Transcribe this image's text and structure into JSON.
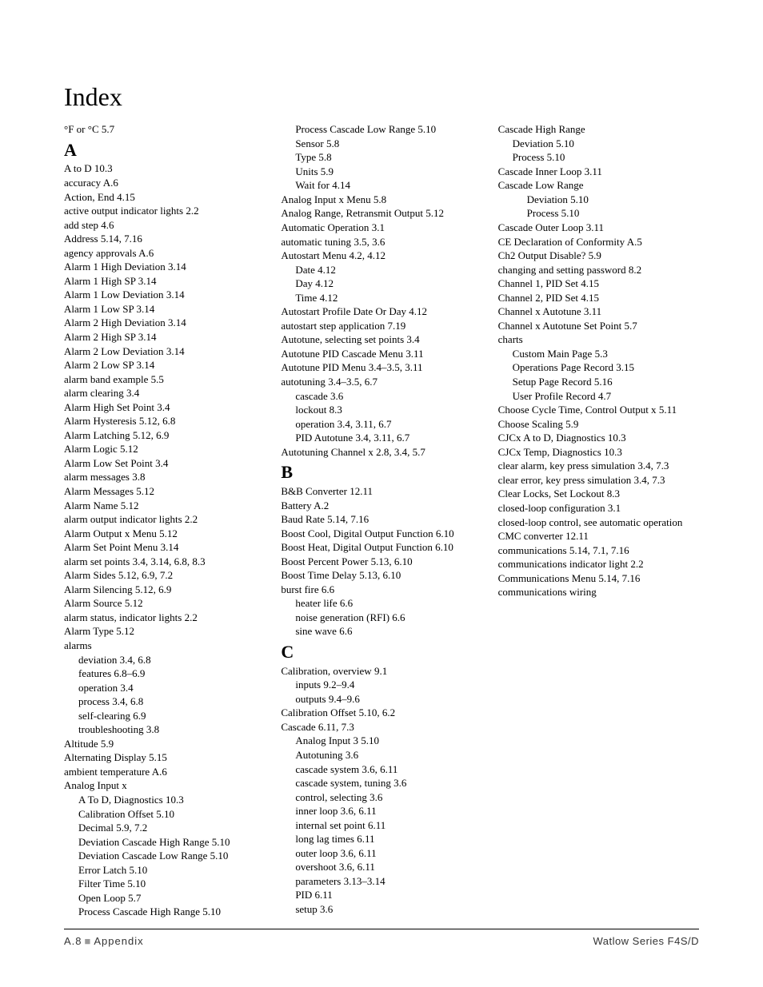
{
  "title": "Index",
  "footer": {
    "page": "A.8",
    "section": "Appendix",
    "product": "Watlow Series F4S/D"
  },
  "columns": [
    [
      {
        "type": "entry",
        "indent": 0,
        "term": "°F or °C",
        "pages": "5.7"
      },
      {
        "type": "letter",
        "text": "A"
      },
      {
        "type": "entry",
        "indent": 0,
        "term": "A to D",
        "pages": "10.3"
      },
      {
        "type": "entry",
        "indent": 0,
        "term": "accuracy",
        "pages": "A.6"
      },
      {
        "type": "entry",
        "indent": 0,
        "term": "Action, End",
        "pages": "4.15"
      },
      {
        "type": "entry",
        "indent": 0,
        "term": "active output indicator lights",
        "pages": "2.2"
      },
      {
        "type": "entry",
        "indent": 0,
        "term": "add step",
        "pages": "4.6"
      },
      {
        "type": "entry",
        "indent": 0,
        "term": "Address",
        "pages": "5.14, 7.16"
      },
      {
        "type": "entry",
        "indent": 0,
        "term": "agency approvals",
        "pages": "A.6"
      },
      {
        "type": "entry",
        "indent": 0,
        "term": "Alarm 1 High Deviation",
        "pages": "3.14"
      },
      {
        "type": "entry",
        "indent": 0,
        "term": "Alarm 1 High SP",
        "pages": "3.14"
      },
      {
        "type": "entry",
        "indent": 0,
        "term": "Alarm 1 Low Deviation",
        "pages": "3.14"
      },
      {
        "type": "entry",
        "indent": 0,
        "term": "Alarm 1 Low SP",
        "pages": "3.14"
      },
      {
        "type": "entry",
        "indent": 0,
        "term": "Alarm 2 High Deviation",
        "pages": "3.14"
      },
      {
        "type": "entry",
        "indent": 0,
        "term": "Alarm 2 High SP",
        "pages": "3.14"
      },
      {
        "type": "entry",
        "indent": 0,
        "term": "Alarm 2 Low Deviation",
        "pages": "3.14"
      },
      {
        "type": "entry",
        "indent": 0,
        "term": "Alarm 2 Low SP",
        "pages": "3.14"
      },
      {
        "type": "entry",
        "indent": 0,
        "term": "alarm band example",
        "pages": "5.5"
      },
      {
        "type": "entry",
        "indent": 0,
        "term": "alarm clearing",
        "pages": "3.4"
      },
      {
        "type": "entry",
        "indent": 0,
        "term": "Alarm High Set Point",
        "pages": "3.4"
      },
      {
        "type": "entry",
        "indent": 0,
        "term": "Alarm Hysteresis",
        "pages": "5.12, 6.8"
      },
      {
        "type": "entry",
        "indent": 0,
        "term": "Alarm Latching",
        "pages": "5.12, 6.9"
      },
      {
        "type": "entry",
        "indent": 0,
        "term": "Alarm Logic",
        "pages": "5.12"
      },
      {
        "type": "entry",
        "indent": 0,
        "term": "Alarm Low Set Point",
        "pages": "3.4"
      },
      {
        "type": "entry",
        "indent": 0,
        "term": "alarm messages",
        "pages": "3.8"
      },
      {
        "type": "entry",
        "indent": 0,
        "term": "Alarm Messages",
        "pages": "5.12"
      },
      {
        "type": "entry",
        "indent": 0,
        "term": "Alarm Name",
        "pages": "5.12"
      },
      {
        "type": "entry",
        "indent": 0,
        "term": "alarm output indicator lights",
        "pages": "2.2"
      },
      {
        "type": "entry",
        "indent": 0,
        "term": "Alarm Output x Menu",
        "pages": "5.12"
      },
      {
        "type": "entry",
        "indent": 0,
        "term": "Alarm Set Point Menu",
        "pages": "3.14"
      },
      {
        "type": "entry",
        "indent": 0,
        "term": "alarm set points",
        "pages": "3.4, 3.14, 6.8, 8.3"
      },
      {
        "type": "entry",
        "indent": 0,
        "term": "Alarm Sides",
        "pages": "5.12, 6.9, 7.2"
      },
      {
        "type": "entry",
        "indent": 0,
        "term": "Alarm Silencing",
        "pages": "5.12, 6.9"
      },
      {
        "type": "entry",
        "indent": 0,
        "term": "Alarm Source",
        "pages": "5.12"
      },
      {
        "type": "entry",
        "indent": 0,
        "term": "alarm status, indicator lights",
        "pages": "2.2"
      },
      {
        "type": "entry",
        "indent": 0,
        "term": "Alarm Type",
        "pages": "5.12"
      },
      {
        "type": "entry",
        "indent": 0,
        "term": "alarms",
        "pages": ""
      },
      {
        "type": "entry",
        "indent": 1,
        "term": "deviation",
        "pages": "3.4, 6.8"
      },
      {
        "type": "entry",
        "indent": 1,
        "term": "features",
        "pages": "6.8–6.9"
      },
      {
        "type": "entry",
        "indent": 1,
        "term": "operation",
        "pages": "3.4"
      },
      {
        "type": "entry",
        "indent": 1,
        "term": "process",
        "pages": "3.4, 6.8"
      },
      {
        "type": "entry",
        "indent": 1,
        "term": "self-clearing",
        "pages": "6.9"
      },
      {
        "type": "entry",
        "indent": 1,
        "term": "troubleshooting",
        "pages": "3.8"
      },
      {
        "type": "entry",
        "indent": 0,
        "term": "Altitude",
        "pages": "5.9"
      },
      {
        "type": "entry",
        "indent": 0,
        "term": "Alternating Display",
        "pages": "5.15"
      },
      {
        "type": "entry",
        "indent": 0,
        "term": "ambient temperature",
        "pages": "A.6"
      },
      {
        "type": "entry",
        "indent": 0,
        "term": "Analog Input x",
        "pages": ""
      },
      {
        "type": "entry",
        "indent": 1,
        "term": "A To D, Diagnostics",
        "pages": "10.3"
      },
      {
        "type": "entry",
        "indent": 1,
        "term": "Calibration Offset",
        "pages": "5.10"
      }
    ],
    [
      {
        "type": "entry",
        "indent": 1,
        "term": "Decimal",
        "pages": "5.9, 7.2"
      },
      {
        "type": "entry",
        "indent": 1,
        "term": "Deviation Cascade High Range",
        "pages": "5.10"
      },
      {
        "type": "entry",
        "indent": 1,
        "term": "Deviation Cascade Low Range",
        "pages": "5.10"
      },
      {
        "type": "entry",
        "indent": 1,
        "term": "Error Latch",
        "pages": "5.10"
      },
      {
        "type": "entry",
        "indent": 1,
        "term": "Filter Time",
        "pages": "5.10"
      },
      {
        "type": "entry",
        "indent": 1,
        "term": "Open Loop",
        "pages": "5.7"
      },
      {
        "type": "entry",
        "indent": 1,
        "term": "Process Cascade High Range",
        "pages": "5.10"
      },
      {
        "type": "entry",
        "indent": 1,
        "term": "Process Cascade Low Range",
        "pages": "5.10"
      },
      {
        "type": "entry",
        "indent": 1,
        "term": "Sensor",
        "pages": "5.8"
      },
      {
        "type": "entry",
        "indent": 1,
        "term": "Type",
        "pages": "5.8"
      },
      {
        "type": "entry",
        "indent": 1,
        "term": "Units",
        "pages": "5.9"
      },
      {
        "type": "entry",
        "indent": 1,
        "term": "Wait for",
        "pages": "4.14"
      },
      {
        "type": "entry",
        "indent": 0,
        "term": "Analog Input x Menu",
        "pages": "5.8"
      },
      {
        "type": "entry",
        "indent": 0,
        "term": "Analog Range, Retransmit Output",
        "pages": "5.12"
      },
      {
        "type": "entry",
        "indent": 0,
        "term": "Automatic Operation",
        "pages": "3.1"
      },
      {
        "type": "entry",
        "indent": 0,
        "term": "automatic tuning",
        "pages": "3.5, 3.6"
      },
      {
        "type": "entry",
        "indent": 0,
        "term": "Autostart Menu",
        "pages": "4.2, 4.12"
      },
      {
        "type": "entry",
        "indent": 1,
        "term": "Date",
        "pages": "4.12"
      },
      {
        "type": "entry",
        "indent": 1,
        "term": "Day",
        "pages": "4.12"
      },
      {
        "type": "entry",
        "indent": 1,
        "term": "Time",
        "pages": "4.12"
      },
      {
        "type": "entry",
        "indent": 0,
        "term": "Autostart Profile Date Or Day",
        "pages": "4.12"
      },
      {
        "type": "entry",
        "indent": 0,
        "term": "autostart step application",
        "pages": "7.19"
      },
      {
        "type": "entry",
        "indent": 0,
        "term": "Autotune, selecting set points",
        "pages": "3.4"
      },
      {
        "type": "entry",
        "indent": 0,
        "term": "Autotune PID Cascade Menu",
        "pages": "3.11"
      },
      {
        "type": "entry",
        "indent": 0,
        "term": "Autotune PID Menu",
        "pages": "3.4–3.5, 3.11"
      },
      {
        "type": "entry",
        "indent": 0,
        "term": "autotuning",
        "pages": "3.4–3.5, 6.7"
      },
      {
        "type": "entry",
        "indent": 1,
        "term": "cascade",
        "pages": "3.6"
      },
      {
        "type": "entry",
        "indent": 1,
        "term": "lockout",
        "pages": "8.3"
      },
      {
        "type": "entry",
        "indent": 1,
        "term": "operation",
        "pages": "3.4, 3.11, 6.7"
      },
      {
        "type": "entry",
        "indent": 1,
        "term": "PID Autotune",
        "pages": "3.4, 3.11, 6.7"
      },
      {
        "type": "entry",
        "indent": 0,
        "term": "Autotuning Channel x",
        "pages": "2.8, 3.4, 5.7"
      },
      {
        "type": "letter",
        "text": "B"
      },
      {
        "type": "entry",
        "indent": 0,
        "term": "B&B Converter",
        "pages": "12.11"
      },
      {
        "type": "entry",
        "indent": 0,
        "term": "Battery",
        "pages": "A.2"
      },
      {
        "type": "entry",
        "indent": 0,
        "term": "Baud Rate",
        "pages": "5.14, 7.16"
      },
      {
        "type": "entry",
        "indent": 0,
        "term": "Boost Cool, Digital Output Function",
        "pages": "6.10"
      },
      {
        "type": "entry",
        "indent": 0,
        "term": "Boost Heat, Digital Output Function",
        "pages": "6.10"
      },
      {
        "type": "entry",
        "indent": 0,
        "term": "Boost Percent Power",
        "pages": "5.13, 6.10"
      },
      {
        "type": "entry",
        "indent": 0,
        "term": "Boost Time Delay",
        "pages": "5.13, 6.10"
      },
      {
        "type": "entry",
        "indent": 0,
        "term": "burst fire",
        "pages": "6.6"
      },
      {
        "type": "entry",
        "indent": 1,
        "term": "heater life",
        "pages": "6.6"
      },
      {
        "type": "entry",
        "indent": 1,
        "term": "noise generation (RFI)",
        "pages": "6.6"
      },
      {
        "type": "entry",
        "indent": 1,
        "term": "sine wave",
        "pages": "6.6"
      },
      {
        "type": "letter",
        "text": "C"
      },
      {
        "type": "entry",
        "indent": 0,
        "term": "Calibration, overview",
        "pages": "9.1"
      },
      {
        "type": "entry",
        "indent": 1,
        "term": "inputs",
        "pages": "9.2–9.4"
      },
      {
        "type": "entry",
        "indent": 1,
        "term": "outputs",
        "pages": "9.4–9.6"
      }
    ],
    [
      {
        "type": "entry",
        "indent": 0,
        "term": "Calibration Offset",
        "pages": "5.10, 6.2"
      },
      {
        "type": "entry",
        "indent": 0,
        "term": "Cascade",
        "pages": "6.11, 7.3"
      },
      {
        "type": "entry",
        "indent": 1,
        "term": "Analog Input 3",
        "pages": "5.10"
      },
      {
        "type": "entry",
        "indent": 1,
        "term": "Autotuning",
        "pages": "3.6"
      },
      {
        "type": "entry",
        "indent": 1,
        "term": "cascade system",
        "pages": "3.6, 6.11"
      },
      {
        "type": "entry",
        "indent": 1,
        "term": "cascade system, tuning",
        "pages": "3.6"
      },
      {
        "type": "entry",
        "indent": 1,
        "term": "control, selecting",
        "pages": "3.6"
      },
      {
        "type": "entry",
        "indent": 1,
        "term": "inner loop",
        "pages": "3.6, 6.11"
      },
      {
        "type": "entry",
        "indent": 1,
        "term": "internal set point",
        "pages": "6.11"
      },
      {
        "type": "entry",
        "indent": 1,
        "term": "long lag times",
        "pages": "6.11"
      },
      {
        "type": "entry",
        "indent": 1,
        "term": "outer loop",
        "pages": "3.6, 6.11"
      },
      {
        "type": "entry",
        "indent": 1,
        "term": "overshoot",
        "pages": "3.6, 6.11"
      },
      {
        "type": "entry",
        "indent": 1,
        "term": "parameters",
        "pages": "3.13–3.14"
      },
      {
        "type": "entry",
        "indent": 1,
        "term": "PID",
        "pages": "6.11"
      },
      {
        "type": "entry",
        "indent": 1,
        "term": "setup",
        "pages": "3.6"
      },
      {
        "type": "entry",
        "indent": 0,
        "term": "Cascade High Range",
        "pages": ""
      },
      {
        "type": "entry",
        "indent": 1,
        "term": "Deviation",
        "pages": "5.10"
      },
      {
        "type": "entry",
        "indent": 1,
        "term": "Process",
        "pages": "5.10"
      },
      {
        "type": "entry",
        "indent": 0,
        "term": "Cascade Inner Loop",
        "pages": "3.11"
      },
      {
        "type": "entry",
        "indent": 0,
        "term": "Cascade Low Range",
        "pages": ""
      },
      {
        "type": "entry",
        "indent": 2,
        "term": "Deviation",
        "pages": "5.10"
      },
      {
        "type": "entry",
        "indent": 2,
        "term": "Process",
        "pages": "5.10"
      },
      {
        "type": "entry",
        "indent": 0,
        "term": "Cascade Outer Loop",
        "pages": "3.11"
      },
      {
        "type": "entry",
        "indent": 0,
        "term": "CE Declaration of Conformity",
        "pages": "A.5"
      },
      {
        "type": "entry",
        "indent": 0,
        "term": "Ch2 Output Disable?",
        "pages": "5.9"
      },
      {
        "type": "entry",
        "indent": 0,
        "term": "changing and setting password",
        "pages": "8.2"
      },
      {
        "type": "entry",
        "indent": 0,
        "term": "Channel 1, PID Set",
        "pages": "4.15"
      },
      {
        "type": "entry",
        "indent": 0,
        "term": "Channel 2, PID Set",
        "pages": "4.15"
      },
      {
        "type": "entry",
        "indent": 0,
        "term": "Channel x Autotune",
        "pages": "3.11"
      },
      {
        "type": "entry",
        "indent": 0,
        "term": "Channel x Autotune Set Point",
        "pages": "5.7"
      },
      {
        "type": "entry",
        "indent": 0,
        "term": "charts",
        "pages": ""
      },
      {
        "type": "entry",
        "indent": 1,
        "term": "Custom Main Page",
        "pages": "5.3"
      },
      {
        "type": "entry",
        "indent": 1,
        "term": "Operations Page Record",
        "pages": "3.15"
      },
      {
        "type": "entry",
        "indent": 1,
        "term": "Setup Page Record",
        "pages": "5.16"
      },
      {
        "type": "entry",
        "indent": 1,
        "term": "User Profile Record",
        "pages": "4.7"
      },
      {
        "type": "entry",
        "indent": 0,
        "term": "Choose Cycle Time, Control Output x",
        "pages": "5.11"
      },
      {
        "type": "entry",
        "indent": 0,
        "term": "Choose Scaling",
        "pages": "5.9"
      },
      {
        "type": "entry",
        "indent": 0,
        "term": "CJCx A to D, Diagnostics",
        "pages": "10.3"
      },
      {
        "type": "entry",
        "indent": 0,
        "term": "CJCx Temp, Diagnostics",
        "pages": "10.3"
      },
      {
        "type": "entry",
        "indent": 0,
        "term": "clear alarm, key press simulation",
        "pages": "3.4, 7.3"
      },
      {
        "type": "entry",
        "indent": 0,
        "term": "clear error, key press simulation",
        "pages": "3.4, 7.3"
      },
      {
        "type": "entry",
        "indent": 0,
        "term": "Clear Locks, Set Lockout",
        "pages": "8.3"
      },
      {
        "type": "entry",
        "indent": 0,
        "term": "closed-loop configuration",
        "pages": "3.1"
      },
      {
        "type": "entry",
        "indent": 0,
        "term": "closed-loop control,  see automatic operation",
        "pages": ""
      },
      {
        "type": "entry",
        "indent": 0,
        "term": "CMC converter",
        "pages": "12.11"
      },
      {
        "type": "entry",
        "indent": 0,
        "term": "communications",
        "pages": "5.14, 7.1, 7.16"
      },
      {
        "type": "entry",
        "indent": 0,
        "term": "communications indicator light",
        "pages": "2.2"
      },
      {
        "type": "entry",
        "indent": 0,
        "term": "Communications Menu",
        "pages": "5.14, 7.16"
      },
      {
        "type": "entry",
        "indent": 0,
        "term": "communications wiring",
        "pages": ""
      }
    ]
  ]
}
